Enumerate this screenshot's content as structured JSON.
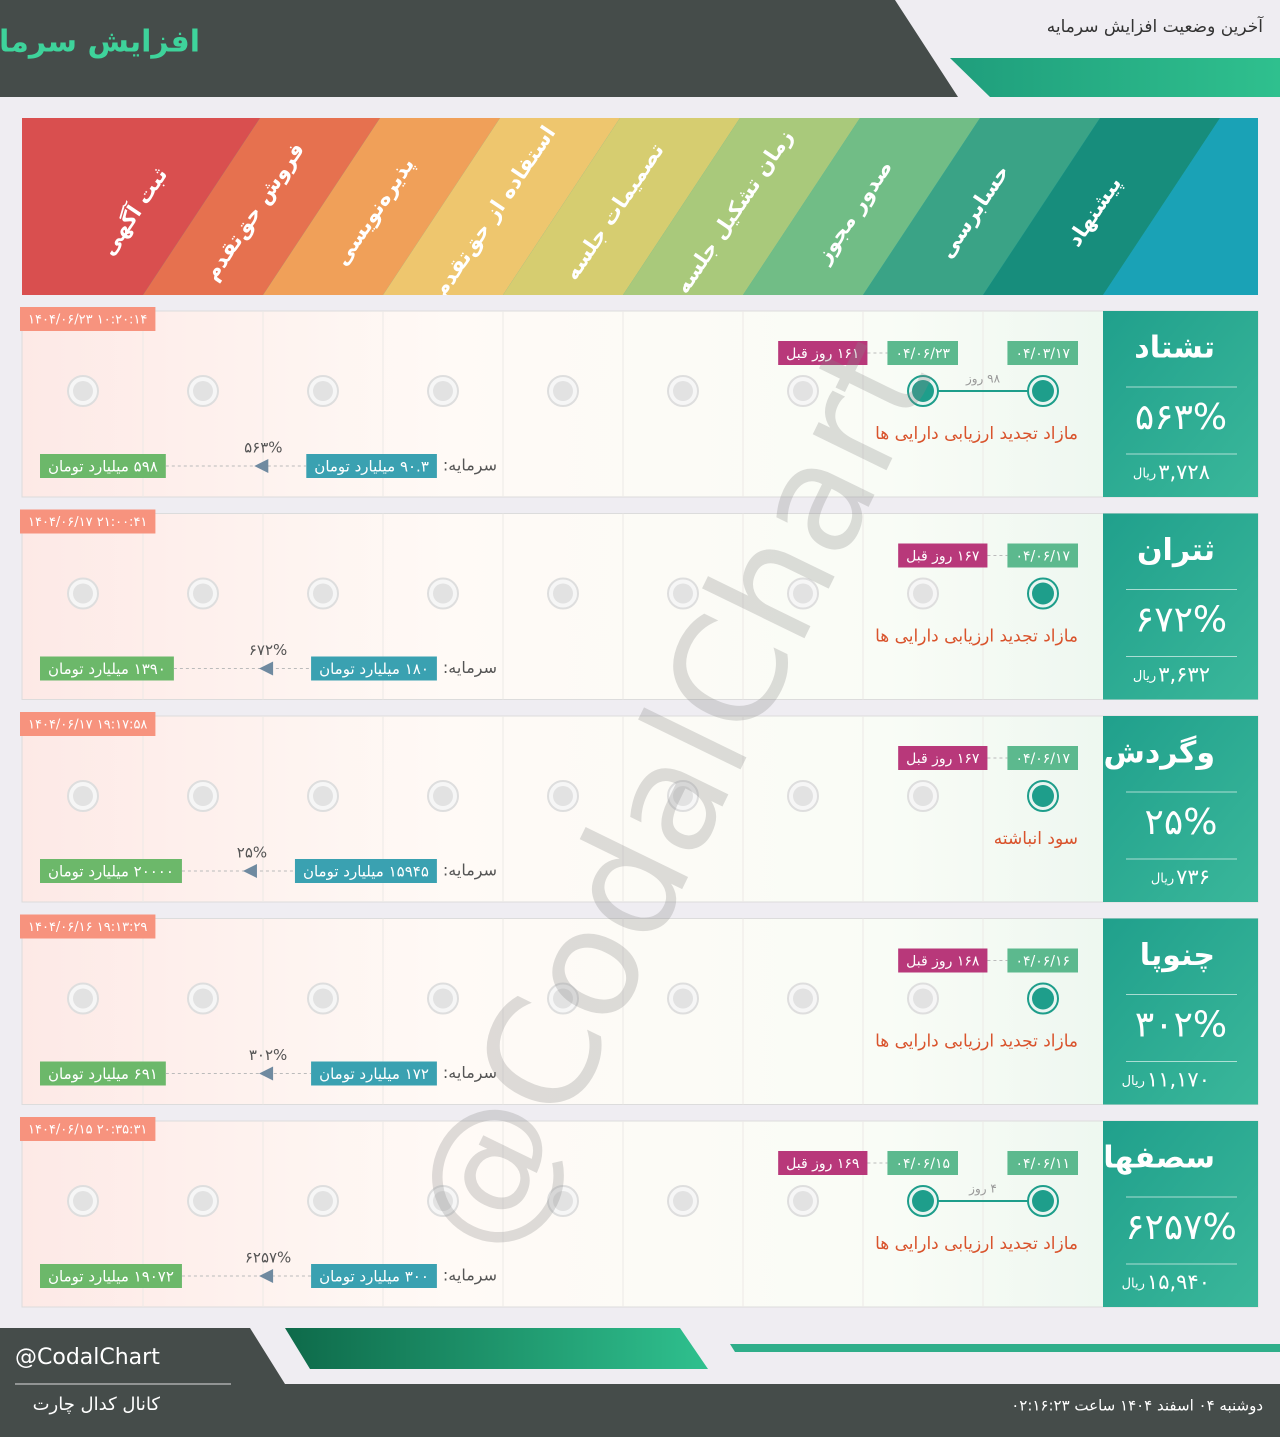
{
  "header": {
    "title": "افزایش سرمایه",
    "subtitle": "آخرین وضعیت افزایش سرمایه"
  },
  "stages": [
    "پیشنهاد",
    "حسابرسی",
    "صدور مجوز",
    "زمان تشکیل جلسه",
    "تصمیمات جلسه",
    "استفاده از حق‌تقدم",
    "پذیره‌نویسی",
    "فروش حق‌تقدم",
    "ثبت آگهی"
  ],
  "watermark": "@CodalChart",
  "companies": [
    {
      "symbol": "تشتاد",
      "percent": "۵۶۳%",
      "price": "۳,۷۲۸",
      "price_unit": "ریال",
      "timestamp": "۱۴۰۴/۰۶/۲۳ ۱۰:۲۰:۱۴",
      "events": [
        {
          "date": "۰۴/۰۳/۱۷"
        },
        {
          "date": "۰۴/۰۶/۲۳",
          "ago": "۱۶۱ روز قبل"
        }
      ],
      "gap": "۹۸ روز",
      "source": "مازاد تجدید ارزیابی دارایی ها",
      "capital_label": "سرمایه:",
      "capital_from": "۹۰.۳ میلیارد تومان",
      "capital_percent": "۵۶۳%",
      "capital_to": "۵۹۸ میلیارد تومان"
    },
    {
      "symbol": "ثتران",
      "percent": "۶۷۲%",
      "price": "۳,۶۳۲",
      "price_unit": "ریال",
      "timestamp": "۱۴۰۴/۰۶/۱۷ ۲۱:۰۰:۴۱",
      "events": [
        {
          "date": "۰۴/۰۶/۱۷",
          "ago": "۱۶۷ روز قبل"
        }
      ],
      "source": "مازاد تجدید ارزیابی دارایی ها",
      "capital_label": "سرمایه:",
      "capital_from": "۱۸۰ میلیارد تومان",
      "capital_percent": "۶۷۲%",
      "capital_to": "۱۳۹۰ میلیارد تومان"
    },
    {
      "symbol": "وگردش",
      "percent": "۲۵%",
      "price": "۷۳۶",
      "price_unit": "ریال",
      "timestamp": "۱۴۰۴/۰۶/۱۷ ۱۹:۱۷:۵۸",
      "events": [
        {
          "date": "۰۴/۰۶/۱۷",
          "ago": "۱۶۷ روز قبل"
        }
      ],
      "source": "سود انباشته",
      "capital_label": "سرمایه:",
      "capital_from": "۱۵۹۴۵ میلیارد تومان",
      "capital_percent": "۲۵%",
      "capital_to": "۲۰۰۰۰ میلیارد تومان"
    },
    {
      "symbol": "چنوپا",
      "percent": "۳۰۲%",
      "price": "۱۱,۱۷۰",
      "price_unit": "ریال",
      "timestamp": "۱۴۰۴/۰۶/۱۶ ۱۹:۱۳:۲۹",
      "events": [
        {
          "date": "۰۴/۰۶/۱۶",
          "ago": "۱۶۸ روز قبل"
        }
      ],
      "source": "مازاد تجدید ارزیابی دارایی ها",
      "capital_label": "سرمایه:",
      "capital_from": "۱۷۲ میلیارد تومان",
      "capital_percent": "۳۰۲%",
      "capital_to": "۶۹۱ میلیارد تومان"
    },
    {
      "symbol": "سصفها",
      "percent": "۶۲۵۷%",
      "price": "۱۵,۹۴۰",
      "price_unit": "ریال",
      "timestamp": "۱۴۰۴/۰۶/۱۵ ۲۰:۳۵:۳۱",
      "events": [
        {
          "date": "۰۴/۰۶/۱۱"
        },
        {
          "date": "۰۴/۰۶/۱۵",
          "ago": "۱۶۹ روز قبل"
        }
      ],
      "gap": "۴ روز",
      "source": "مازاد تجدید ارزیابی دارایی ها",
      "capital_label": "سرمایه:",
      "capital_from": "۳۰۰ میلیارد تومان",
      "capital_percent": "۶۲۵۷%",
      "capital_to": "۱۹۰۷۲ میلیارد تومان"
    }
  ],
  "footer": {
    "handle": "@CodalChart",
    "channel": "کانال کدال چارت",
    "datetime": "دوشنبه ۰۴ اسفند ۱۴۰۴ ساعت ۰۲:۱۶:۲۳"
  }
}
